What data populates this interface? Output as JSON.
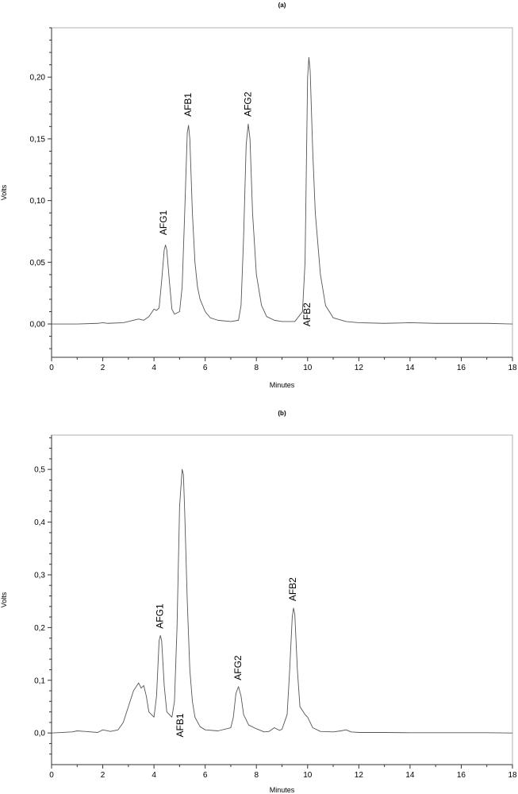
{
  "chart_data": [
    {
      "type": "line",
      "panel_label": "(a)",
      "xlabel": "Minutes",
      "ylabel": "Volts",
      "xlim": [
        0,
        18
      ],
      "ylim": [
        -0.027,
        0.24
      ],
      "xticks": [
        0,
        2,
        4,
        6,
        8,
        10,
        12,
        14,
        16,
        18
      ],
      "yticks": [
        0.0,
        0.05,
        0.1,
        0.15,
        0.2
      ],
      "ytick_labels": [
        "0,00",
        "0,05",
        "0,10",
        "0,15",
        "0,20"
      ],
      "grid": false,
      "series": [
        {
          "x": [
            0,
            1.0,
            1.8,
            2.0,
            2.2,
            2.8,
            3.0,
            3.2,
            3.4,
            3.6,
            3.8,
            4.0,
            4.1,
            4.2,
            4.3,
            4.4,
            4.45,
            4.5,
            4.6,
            4.7,
            4.8,
            5.0,
            5.1,
            5.2,
            5.3,
            5.35,
            5.4,
            5.5,
            5.6,
            5.7,
            5.8,
            6.0,
            6.2,
            6.5,
            7.0,
            7.3,
            7.4,
            7.5,
            7.6,
            7.68,
            7.75,
            7.85,
            8.0,
            8.2,
            8.4,
            8.7,
            9.0,
            9.5,
            9.8,
            9.9,
            10.0,
            10.05,
            10.1,
            10.2,
            10.3,
            10.5,
            10.7,
            11.0,
            11.5,
            12.0,
            13.0,
            14.0,
            15.0,
            16.0,
            17.0,
            18.0
          ],
          "y": [
            0.0,
            0.0,
            0.0005,
            0.001,
            0.0005,
            0.001,
            0.002,
            0.003,
            0.004,
            0.003,
            0.006,
            0.012,
            0.011,
            0.013,
            0.035,
            0.06,
            0.064,
            0.06,
            0.035,
            0.012,
            0.008,
            0.01,
            0.03,
            0.09,
            0.155,
            0.161,
            0.15,
            0.09,
            0.05,
            0.03,
            0.02,
            0.01,
            0.005,
            0.003,
            0.002,
            0.003,
            0.015,
            0.07,
            0.145,
            0.162,
            0.15,
            0.09,
            0.04,
            0.015,
            0.006,
            0.003,
            0.002,
            0.002,
            0.01,
            0.05,
            0.2,
            0.216,
            0.205,
            0.14,
            0.09,
            0.04,
            0.015,
            0.005,
            0.002,
            0.001,
            0.0005,
            0.001,
            0.0005,
            0.0005,
            0.0005,
            0.0
          ]
        }
      ],
      "annotations": [
        {
          "text": "AFG1",
          "x": 4.4,
          "y": 0.072
        },
        {
          "text": "AFB1",
          "x": 5.35,
          "y": 0.168
        },
        {
          "text": "AFG2",
          "x": 7.7,
          "y": 0.168
        },
        {
          "text": "AFB2",
          "x": 10.0,
          "y": -0.002
        }
      ]
    },
    {
      "type": "line",
      "panel_label": "(b)",
      "xlabel": "Minutes",
      "ylabel": "Volts",
      "xlim": [
        0,
        18
      ],
      "ylim": [
        -0.06,
        0.565
      ],
      "xticks": [
        0,
        2,
        4,
        6,
        8,
        10,
        12,
        14,
        16,
        18
      ],
      "yticks": [
        0.0,
        0.1,
        0.2,
        0.3,
        0.4,
        0.5
      ],
      "ytick_labels": [
        "0,0",
        "0,1",
        "0,2",
        "0,3",
        "0,4",
        "0,5"
      ],
      "grid": false,
      "series": [
        {
          "x": [
            0,
            0.8,
            1.0,
            1.3,
            1.8,
            2.0,
            2.3,
            2.6,
            2.8,
            3.0,
            3.2,
            3.4,
            3.5,
            3.6,
            3.7,
            3.8,
            4.0,
            4.1,
            4.2,
            4.25,
            4.3,
            4.4,
            4.5,
            4.7,
            4.8,
            4.9,
            5.0,
            5.1,
            5.15,
            5.2,
            5.3,
            5.4,
            5.5,
            5.6,
            5.8,
            6.0,
            6.5,
            7.0,
            7.1,
            7.2,
            7.3,
            7.4,
            7.5,
            7.7,
            8.0,
            8.3,
            8.5,
            8.7,
            8.9,
            9.0,
            9.2,
            9.3,
            9.4,
            9.45,
            9.5,
            9.6,
            9.7,
            9.9,
            10.0,
            10.2,
            10.5,
            11.0,
            11.3,
            11.5,
            11.7,
            12.0,
            13.0,
            14.0,
            15.0,
            16.0,
            17.0,
            18.0
          ],
          "y": [
            0.0,
            0.002,
            0.004,
            0.003,
            0.001,
            0.006,
            0.003,
            0.006,
            0.02,
            0.05,
            0.08,
            0.095,
            0.085,
            0.09,
            0.07,
            0.04,
            0.03,
            0.07,
            0.175,
            0.185,
            0.175,
            0.09,
            0.04,
            0.03,
            0.06,
            0.2,
            0.43,
            0.5,
            0.49,
            0.42,
            0.25,
            0.12,
            0.06,
            0.03,
            0.012,
            0.006,
            0.004,
            0.01,
            0.03,
            0.075,
            0.088,
            0.07,
            0.035,
            0.015,
            0.008,
            0.002,
            0.003,
            0.01,
            0.005,
            0.007,
            0.035,
            0.12,
            0.22,
            0.237,
            0.225,
            0.12,
            0.05,
            0.035,
            0.03,
            0.01,
            0.003,
            0.002,
            0.004,
            0.006,
            0.002,
            0.001,
            0.001,
            0.0005,
            0.0005,
            0.0005,
            0.0005,
            0.0
          ]
        }
      ],
      "annotations": [
        {
          "text": "AFG1",
          "x": 4.25,
          "y": 0.198
        },
        {
          "text": "AFB1",
          "x": 5.05,
          "y": -0.008
        },
        {
          "text": "AFG2",
          "x": 7.3,
          "y": 0.1
        },
        {
          "text": "AFB2",
          "x": 9.45,
          "y": 0.25
        }
      ]
    }
  ]
}
